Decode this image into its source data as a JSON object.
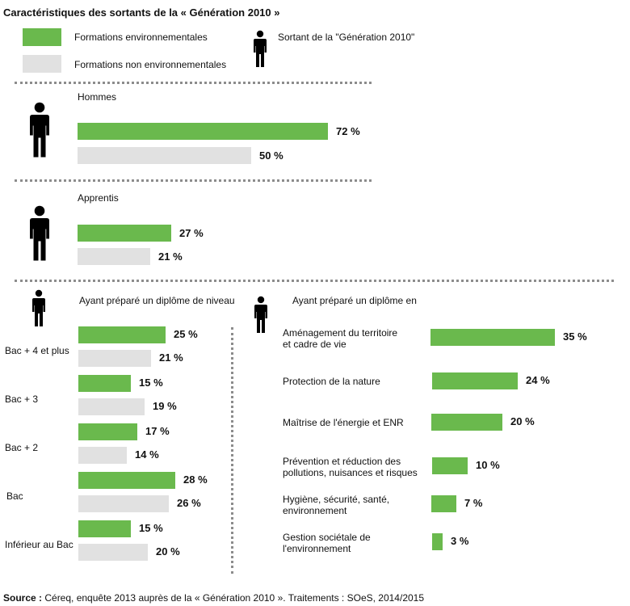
{
  "title": "Caractéristiques des sortants de la « Génération 2010 »",
  "legend": {
    "env_label": "Formations environnementales",
    "nonenv_label": "Formations non environnementales",
    "person_label": "Sortant de la \"Génération 2010\""
  },
  "colors": {
    "env": "#6ab94d",
    "nonenv": "#e1e1e1",
    "person": "#000000",
    "divider": "#8c8c8c"
  },
  "icons": [
    "person-icon"
  ],
  "chart_data": [
    {
      "type": "bar",
      "orientation": "horizontal",
      "title": "Hommes",
      "series": [
        {
          "name": "Formations environnementales",
          "values": [
            72
          ]
        },
        {
          "name": "Formations non environnementales",
          "values": [
            50
          ]
        }
      ],
      "labels": {
        "env": "72 %",
        "nonenv": "50 %"
      }
    },
    {
      "type": "bar",
      "orientation": "horizontal",
      "title": "Apprentis",
      "series": [
        {
          "name": "Formations environnementales",
          "values": [
            27
          ]
        },
        {
          "name": "Formations non environnementales",
          "values": [
            21
          ]
        }
      ],
      "labels": {
        "env": "27 %",
        "nonenv": "21 %"
      }
    },
    {
      "type": "bar",
      "orientation": "horizontal",
      "title": "Ayant préparé un diplôme de niveau",
      "categories": [
        "Bac + 4 et plus",
        "Bac + 3",
        "Bac + 2",
        "Bac",
        "Inférieur au Bac"
      ],
      "series": [
        {
          "name": "Formations environnementales",
          "values": [
            25,
            15,
            17,
            28,
            15
          ],
          "labels": [
            "25 %",
            "15 %",
            "17 %",
            "28 %",
            "15 %"
          ]
        },
        {
          "name": "Formations non environnementales",
          "values": [
            21,
            19,
            14,
            26,
            20
          ],
          "labels": [
            "21 %",
            "19 %",
            "14 %",
            "26 %",
            "20 %"
          ]
        }
      ]
    },
    {
      "type": "bar",
      "orientation": "horizontal",
      "title": "Ayant préparé un diplôme en",
      "categories": [
        [
          "Aménagement du territoire",
          "et cadre de vie"
        ],
        [
          "Protection de la nature"
        ],
        [
          "Maîtrise de l'énergie et ENR"
        ],
        [
          "Prévention et réduction des",
          "pollutions, nuisances et risques"
        ],
        [
          "Hygiène, sécurité, santé,",
          "environnement"
        ],
        [
          "Gestion sociétale de",
          "l'environnement"
        ]
      ],
      "series": [
        {
          "name": "Formations environnementales",
          "values": [
            35,
            24,
            20,
            10,
            7,
            3
          ],
          "labels": [
            "35 %",
            "24 %",
            "20 %",
            "10 %",
            "7 %",
            "3 %"
          ]
        }
      ]
    }
  ],
  "source": {
    "prefix": "Source :",
    "text": " Céreq, enquête 2013 auprès de la « Génération 2010 ». Traitements : SOeS, 2014/2015"
  }
}
